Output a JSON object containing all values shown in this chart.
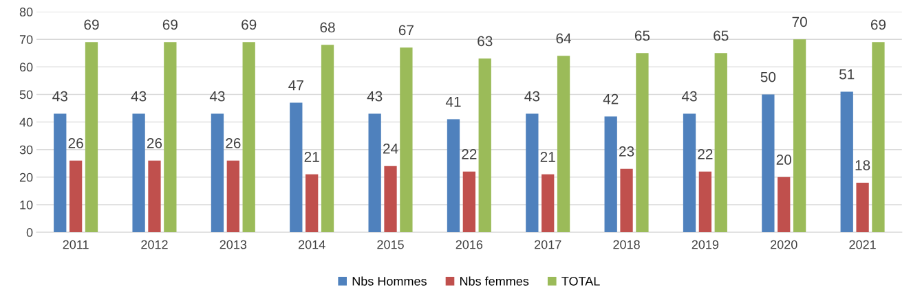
{
  "chart_data": {
    "type": "bar",
    "categories": [
      "2011",
      "2012",
      "2013",
      "2014",
      "2015",
      "2016",
      "2017",
      "2018",
      "2019",
      "2020",
      "2021"
    ],
    "series": [
      {
        "name": "Nbs Hommes",
        "color": "#4f81bd",
        "values": [
          43,
          43,
          43,
          47,
          43,
          41,
          43,
          42,
          43,
          50,
          51
        ]
      },
      {
        "name": "Nbs femmes",
        "color": "#c0504d",
        "values": [
          26,
          26,
          26,
          21,
          24,
          22,
          21,
          23,
          22,
          20,
          18
        ]
      },
      {
        "name": "TOTAL",
        "color": "#9bbb59",
        "values": [
          69,
          69,
          69,
          68,
          67,
          63,
          64,
          65,
          65,
          70,
          69
        ]
      }
    ],
    "ylim": [
      0,
      80
    ],
    "yticks": [
      0,
      10,
      20,
      30,
      40,
      50,
      60,
      70,
      80
    ],
    "grid": "y",
    "legend": "bottom",
    "data_labels": true
  }
}
